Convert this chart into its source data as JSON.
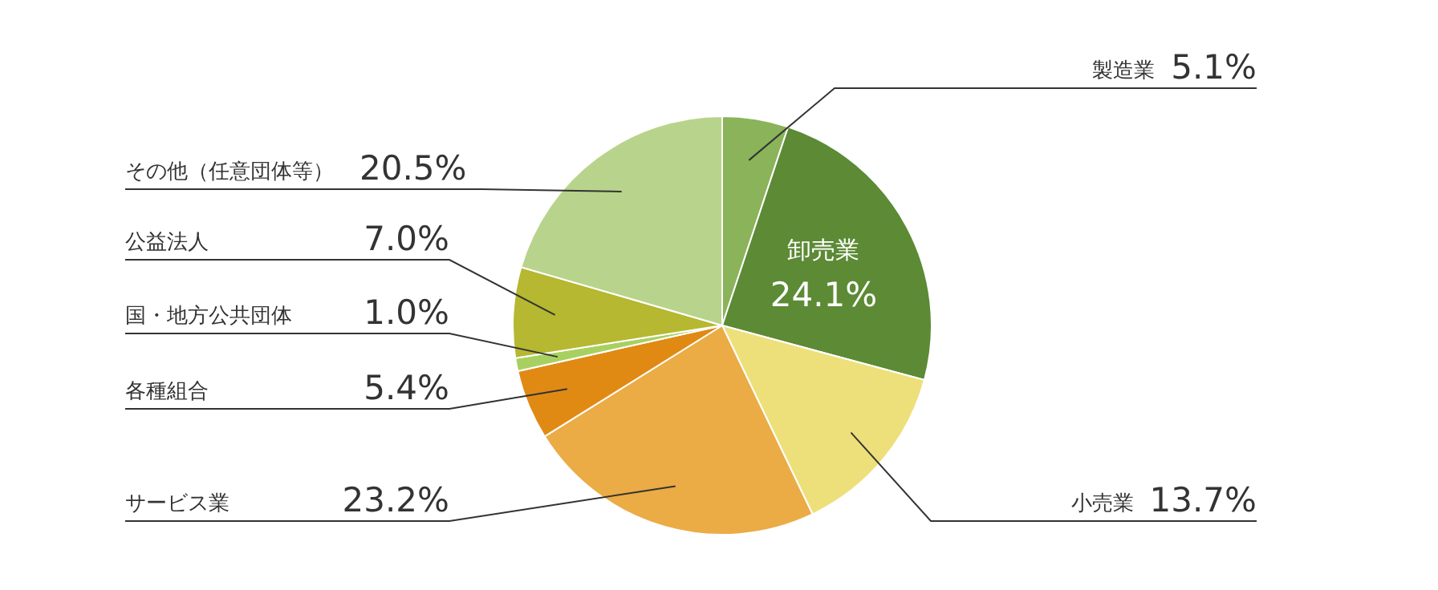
{
  "chart_data": {
    "type": "pie",
    "categories": [
      "製造業",
      "卸売業",
      "小売業",
      "サービス業",
      "各種組合",
      "国・地方公共団体",
      "公益法人",
      "その他（任意団体等）"
    ],
    "values": [
      5.1,
      24.1,
      13.7,
      23.2,
      5.4,
      1.0,
      7.0,
      20.5
    ],
    "colors": [
      "#8ab35a",
      "#5c8a35",
      "#ede07a",
      "#ebab45",
      "#e08a14",
      "#a8d060",
      "#b5b830",
      "#b8d48c"
    ],
    "value_labels": [
      "5.1%",
      "24.1%",
      "13.7%",
      "23.2%",
      "5.4%",
      "1.0%",
      "7.0%",
      "20.5%"
    ],
    "legend": false
  }
}
